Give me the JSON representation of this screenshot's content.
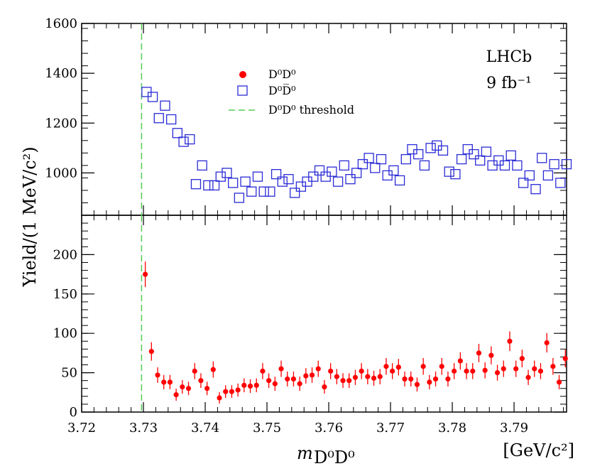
{
  "chart_data": {
    "type": "scatter",
    "experiment": "LHCb",
    "luminosity": "9 fb⁻¹",
    "xlabel": "m",
    "xlabel_sub": "D⁰D⁰",
    "xunit": "[GeV/c²]",
    "ylabel": "Yield/(1 MeV/c²)",
    "xlim": [
      3.72,
      3.7985
    ],
    "x_ticks": [
      "3.72",
      "3.73",
      "3.74",
      "3.75",
      "3.76",
      "3.77",
      "3.78",
      "3.79"
    ],
    "threshold_x": 3.7297,
    "panels": [
      {
        "name": "top",
        "ylim": [
          830,
          1600
        ],
        "y_ticks": [
          "1000",
          "1200",
          "1400",
          "1600"
        ],
        "y_tick_values": [
          1000,
          1200,
          1400,
          1600
        ],
        "legend": [
          {
            "label": "D⁰D⁰",
            "marker": "circle",
            "color": "#ff0000"
          },
          {
            "label": "D⁰D̅⁰",
            "marker": "open-square",
            "color": "#2b2bd6"
          },
          {
            "label": "D⁰D⁰ threshold",
            "marker": "dashed-line",
            "color": "#55cc55"
          }
        ],
        "series": [
          {
            "name": "D⁰D̅⁰",
            "color": "#2b2bd6",
            "x0": 3.7305,
            "step": 0.001,
            "values": [
              1325,
              1305,
              1220,
              1270,
              1215,
              1160,
              1125,
              1135,
              955,
              1030,
              950,
              950,
              985,
              1000,
              960,
              900,
              965,
              925,
              985,
              925,
              925,
              995,
              965,
              975,
              920,
              945,
              965,
              985,
              1010,
              985,
              1005,
              965,
              1030,
              975,
              1000,
              1035,
              1060,
              1020,
              1055,
              990,
              1010,
              970,
              1055,
              1095,
              1075,
              1030,
              1100,
              1110,
              1090,
              1005,
              995,
              1055,
              1095,
              1075,
              1050,
              1085,
              1030,
              1050,
              1030,
              1070,
              1030,
              960,
              990,
              935,
              1060,
              990,
              1035,
              960,
              1035
            ]
          }
        ]
      },
      {
        "name": "bottom",
        "ylim": [
          0,
          250
        ],
        "y_ticks": [
          "0",
          "50",
          "100",
          "150",
          "200"
        ],
        "y_tick_values": [
          0,
          50,
          100,
          150,
          200
        ],
        "series": [
          {
            "name": "D⁰D⁰",
            "color": "#ff0000",
            "x0": 3.7303,
            "step": 0.001,
            "values": [
              175,
              77,
              47,
              38,
              38,
              22,
              32,
              30,
              52,
              40,
              30,
              54,
              18,
              26,
              26,
              28,
              34,
              33,
              34,
              52,
              40,
              36,
              55,
              42,
              42,
              36,
              46,
              47,
              55,
              32,
              52,
              45,
              40,
              40,
              44,
              52,
              45,
              43,
              45,
              58,
              52,
              57,
              42,
              42,
              35,
              58,
              38,
              42,
              58,
              42,
              52,
              65,
              52,
              52,
              75,
              53,
              72,
              50,
              55,
              90,
              55,
              68,
              44,
              55,
              52,
              88,
              58,
              38,
              68
            ]
          }
        ]
      }
    ]
  }
}
